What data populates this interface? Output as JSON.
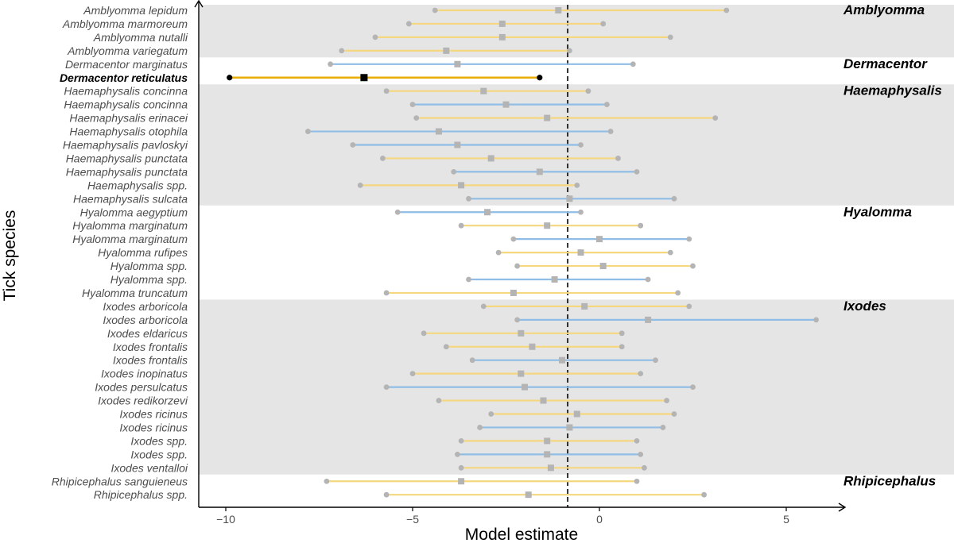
{
  "chart_data": {
    "type": "forest",
    "xlabel": "Model estimate",
    "ylabel": "Tick species",
    "xlim": [
      -10.8,
      6.5
    ],
    "xticks": [
      {
        "value": -10,
        "label": "−10"
      },
      {
        "value": -5,
        "label": "−5"
      },
      {
        "value": 0,
        "label": "0"
      },
      {
        "value": 5,
        "label": "5"
      }
    ],
    "reference_line": -0.85,
    "colors": {
      "yellow": "#f5d77f",
      "blue": "#8fbde6",
      "highlight": "#e8ad00",
      "highlight_marker": "#000000",
      "point": "#b4b4b4",
      "band": "#e5e5e5"
    },
    "genera": [
      {
        "name": "Amblyomma",
        "band": true
      },
      {
        "name": "Dermacentor",
        "band": false
      },
      {
        "name": "Haemaphysalis",
        "band": true
      },
      {
        "name": "Hyalomma",
        "band": false
      },
      {
        "name": "Ixodes",
        "band": true
      },
      {
        "name": "Rhipicephalus",
        "band": false
      }
    ],
    "rows": [
      {
        "label": "Amblyomma lepidum",
        "genus": "Amblyomma",
        "color": "yellow",
        "low": -4.4,
        "est": -1.1,
        "high": 3.4
      },
      {
        "label": "Amblyomma marmoreum",
        "genus": "Amblyomma",
        "color": "yellow",
        "low": -5.1,
        "est": -2.6,
        "high": 0.1
      },
      {
        "label": "Amblyomma nutalli",
        "genus": "Amblyomma",
        "color": "yellow",
        "low": -6.0,
        "est": -2.6,
        "high": 1.9
      },
      {
        "label": "Amblyomma variegatum",
        "genus": "Amblyomma",
        "color": "yellow",
        "low": -6.9,
        "est": -4.1,
        "high": -0.8
      },
      {
        "label": "Dermacentor marginatus",
        "genus": "Dermacentor",
        "color": "blue",
        "low": -7.2,
        "est": -3.8,
        "high": 0.9
      },
      {
        "label": "Dermacentor reticulatus",
        "genus": "Dermacentor",
        "color": "highlight",
        "low": -9.9,
        "est": -6.3,
        "high": -1.6,
        "bold": true
      },
      {
        "label": "Haemaphysalis concinna",
        "genus": "Haemaphysalis",
        "color": "yellow",
        "low": -5.7,
        "est": -3.1,
        "high": -0.3
      },
      {
        "label": "Haemaphysalis concinna",
        "genus": "Haemaphysalis",
        "color": "blue",
        "low": -5.0,
        "est": -2.5,
        "high": 0.2
      },
      {
        "label": "Haemaphysalis erinacei",
        "genus": "Haemaphysalis",
        "color": "yellow",
        "low": -4.9,
        "est": -1.4,
        "high": 3.1
      },
      {
        "label": "Haemaphysalis otophila",
        "genus": "Haemaphysalis",
        "color": "blue",
        "low": -7.8,
        "est": -4.3,
        "high": 0.3
      },
      {
        "label": "Haemaphysalis pavloskyi",
        "genus": "Haemaphysalis",
        "color": "blue",
        "low": -6.6,
        "est": -3.8,
        "high": -0.5
      },
      {
        "label": "Haemaphysalis punctata",
        "genus": "Haemaphysalis",
        "color": "yellow",
        "low": -5.8,
        "est": -2.9,
        "high": 0.5
      },
      {
        "label": "Haemaphysalis punctata",
        "genus": "Haemaphysalis",
        "color": "blue",
        "low": -3.9,
        "est": -1.6,
        "high": 1.0
      },
      {
        "label": "Haemaphysalis spp.",
        "genus": "Haemaphysalis",
        "color": "yellow",
        "low": -6.4,
        "est": -3.7,
        "high": -0.6
      },
      {
        "label": "Haemaphysalis sulcata",
        "genus": "Haemaphysalis",
        "color": "blue",
        "low": -3.5,
        "est": -0.8,
        "high": 2.0
      },
      {
        "label": "Hyalomma aegyptium",
        "genus": "Hyalomma",
        "color": "blue",
        "low": -5.4,
        "est": -3.0,
        "high": -0.5
      },
      {
        "label": "Hyalomma marginatum",
        "genus": "Hyalomma",
        "color": "yellow",
        "low": -3.7,
        "est": -1.4,
        "high": 1.1
      },
      {
        "label": "Hyalomma marginatum",
        "genus": "Hyalomma",
        "color": "blue",
        "low": -2.3,
        "est": 0.0,
        "high": 2.4
      },
      {
        "label": "Hyalomma rufipes",
        "genus": "Hyalomma",
        "color": "yellow",
        "low": -2.7,
        "est": -0.5,
        "high": 1.9
      },
      {
        "label": "Hyalomma spp.",
        "genus": "Hyalomma",
        "color": "yellow",
        "low": -2.2,
        "est": 0.1,
        "high": 2.5
      },
      {
        "label": "Hyalomma spp.",
        "genus": "Hyalomma",
        "color": "blue",
        "low": -3.5,
        "est": -1.2,
        "high": 1.3
      },
      {
        "label": "Hyalomma truncatum",
        "genus": "Hyalomma",
        "color": "yellow",
        "low": -5.7,
        "est": -2.3,
        "high": 2.1
      },
      {
        "label": "Ixodes arboricola",
        "genus": "Ixodes",
        "color": "yellow",
        "low": -3.1,
        "est": -0.4,
        "high": 2.4
      },
      {
        "label": "Ixodes arboricola",
        "genus": "Ixodes",
        "color": "blue",
        "low": -2.2,
        "est": 1.3,
        "high": 5.8
      },
      {
        "label": "Ixodes eldaricus",
        "genus": "Ixodes",
        "color": "yellow",
        "low": -4.7,
        "est": -2.1,
        "high": 0.6
      },
      {
        "label": "Ixodes frontalis",
        "genus": "Ixodes",
        "color": "yellow",
        "low": -4.1,
        "est": -1.8,
        "high": 0.6
      },
      {
        "label": "Ixodes frontalis",
        "genus": "Ixodes",
        "color": "blue",
        "low": -3.4,
        "est": -1.0,
        "high": 1.5
      },
      {
        "label": "Ixodes inopinatus",
        "genus": "Ixodes",
        "color": "yellow",
        "low": -5.0,
        "est": -2.1,
        "high": 1.1
      },
      {
        "label": "Ixodes persulcatus",
        "genus": "Ixodes",
        "color": "blue",
        "low": -5.7,
        "est": -2.0,
        "high": 2.5
      },
      {
        "label": "Ixodes redikorzevi",
        "genus": "Ixodes",
        "color": "yellow",
        "low": -4.3,
        "est": -1.5,
        "high": 1.8
      },
      {
        "label": "Ixodes ricinus",
        "genus": "Ixodes",
        "color": "yellow",
        "low": -2.9,
        "est": -0.6,
        "high": 2.0
      },
      {
        "label": "Ixodes ricinus",
        "genus": "Ixodes",
        "color": "blue",
        "low": -3.2,
        "est": -0.8,
        "high": 1.7
      },
      {
        "label": "Ixodes spp.",
        "genus": "Ixodes",
        "color": "yellow",
        "low": -3.7,
        "est": -1.4,
        "high": 1.0
      },
      {
        "label": "Ixodes spp.",
        "genus": "Ixodes",
        "color": "blue",
        "low": -3.8,
        "est": -1.4,
        "high": 1.1
      },
      {
        "label": "Ixodes ventalloi",
        "genus": "Ixodes",
        "color": "yellow",
        "low": -3.7,
        "est": -1.3,
        "high": 1.2
      },
      {
        "label": "Rhipicephalus sanguieneus",
        "genus": "Rhipicephalus",
        "color": "yellow",
        "low": -7.3,
        "est": -3.7,
        "high": 1.0
      },
      {
        "label": "Rhipicephalus spp.",
        "genus": "Rhipicephalus",
        "color": "yellow",
        "low": -5.7,
        "est": -1.9,
        "high": 2.8
      }
    ]
  }
}
